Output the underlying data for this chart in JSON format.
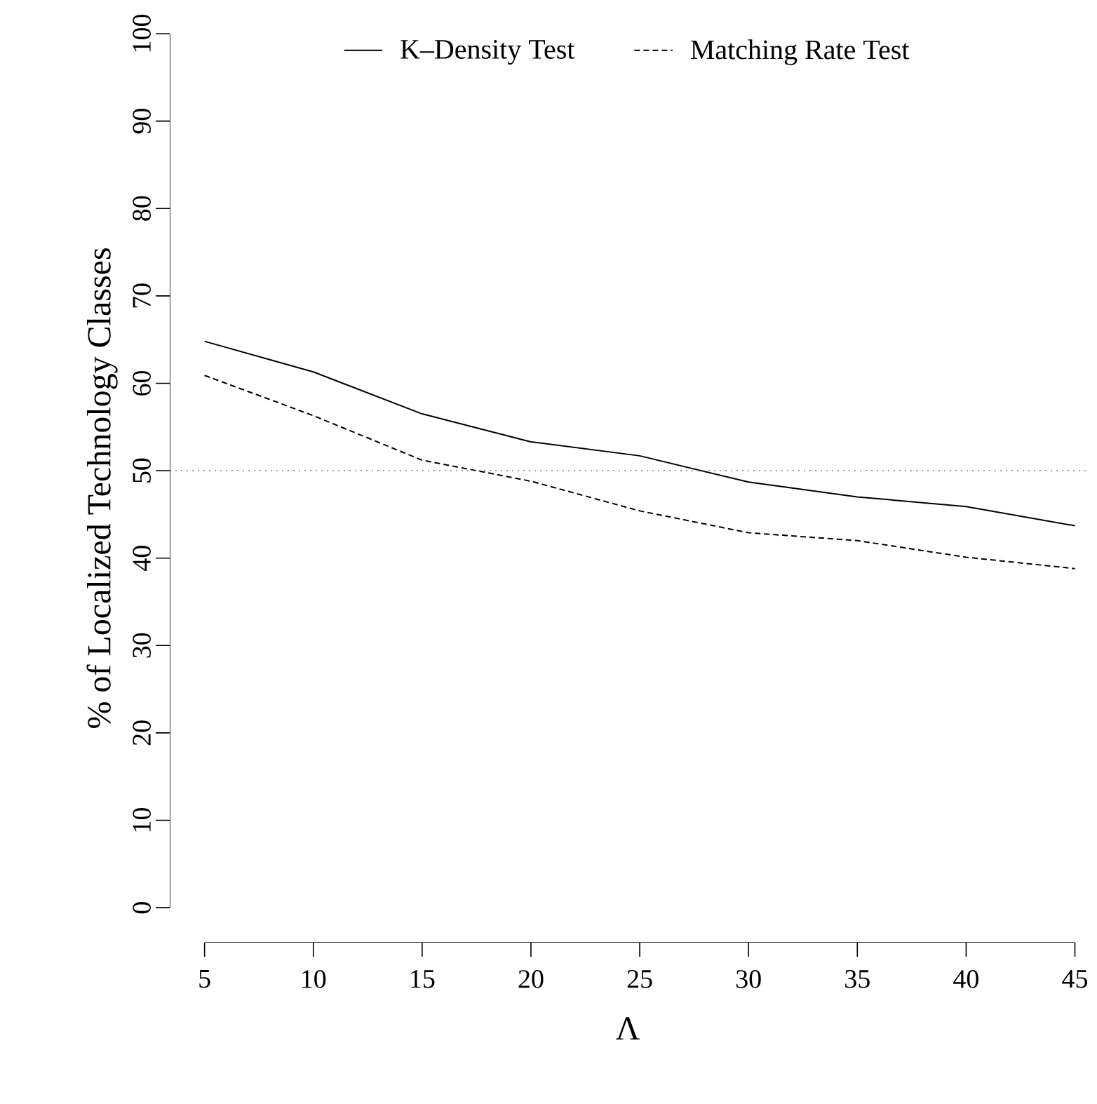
{
  "chart_data": {
    "type": "line",
    "xlabel": "Λ",
    "ylabel": "% of Localized Technology Classes",
    "x": [
      5,
      10,
      15,
      20,
      25,
      30,
      35,
      40,
      45
    ],
    "series": [
      {
        "name": "K–Density Test",
        "color": "#000000",
        "line_style": "solid",
        "values": [
          64.8,
          61.3,
          56.5,
          53.3,
          51.7,
          48.7,
          47.0,
          45.9,
          43.7
        ]
      },
      {
        "name": "Matching Rate Test",
        "color": "#000000",
        "line_style": "dashed",
        "values": [
          60.9,
          56.3,
          51.2,
          48.8,
          45.4,
          42.9,
          42.0,
          40.1,
          38.8
        ]
      }
    ],
    "xlim": [
      3.4,
      45.5
    ],
    "ylim": [
      -4,
      100
    ],
    "xticks": [
      5,
      10,
      15,
      20,
      25,
      30,
      35,
      40,
      45
    ],
    "yticks": [
      0,
      10,
      20,
      30,
      40,
      50,
      60,
      70,
      80,
      90,
      100
    ],
    "legend": "top",
    "grid": false,
    "marker": "none",
    "ref_lines": [
      {
        "axis": "y",
        "value": 50,
        "color": "#808080",
        "line_style": "dotted"
      }
    ]
  }
}
